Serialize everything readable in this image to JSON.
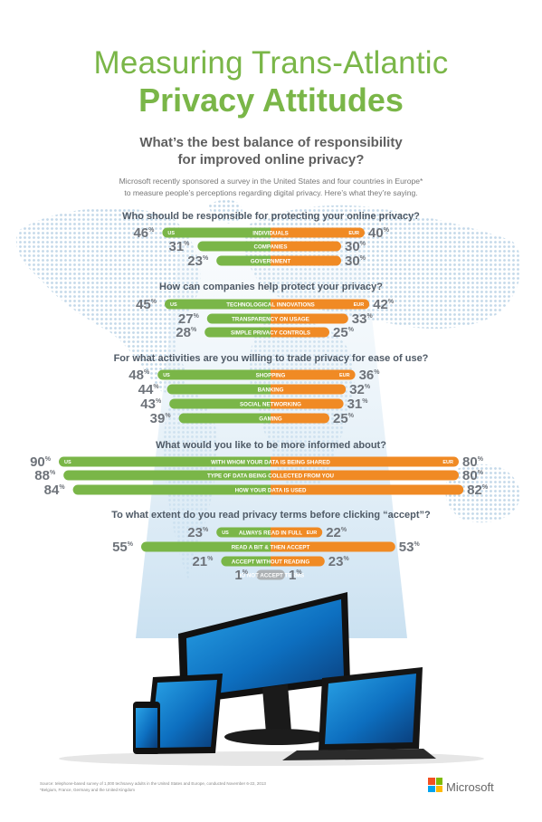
{
  "title_line1": "Measuring Trans-Atlantic",
  "title_line2": "Privacy Attitudes",
  "subtitle_line1": "What’s the best balance of responsibility",
  "subtitle_line2": "for improved online privacy?",
  "intro_line1": "Microsoft recently sponsored a survey in the United States and four countries in Europe*",
  "intro_line2": "to measure people’s perceptions regarding digital privacy. Here’s what they’re saying.",
  "footnote_line1": "Source: telephone-based survey of 1,000 techsavvy adults in the United States and Europe, conducted November 6-22, 2013",
  "footnote_line2": "*Belgium, France, Germany and the United Kingdom",
  "brand": "Microsoft",
  "colors": {
    "us": "#7ab648",
    "eur": "#f08a24",
    "accent": "#7ab648",
    "gray": "#adb1b4"
  },
  "chart_data": [
    {
      "type": "bar",
      "title": "Who should be responsible for protecting your online privacy?",
      "series_labels": {
        "us": "US",
        "eur": "EUR"
      },
      "categories": [
        "INDIVIDUALS",
        "COMPANIES",
        "GOVERNMENT"
      ],
      "series": [
        {
          "name": "US",
          "values": [
            46,
            31,
            23
          ]
        },
        {
          "name": "EUR",
          "values": [
            40,
            30,
            30
          ]
        }
      ]
    },
    {
      "type": "bar",
      "title": "How can companies help protect your privacy?",
      "series_labels": {
        "us": "US",
        "eur": "EUR"
      },
      "categories": [
        "TECHNOLOGICAL INNOVATIONS",
        "TRANSPARENCY ON USAGE",
        "SIMPLE PRIVACY CONTROLS"
      ],
      "series": [
        {
          "name": "US",
          "values": [
            45,
            27,
            28
          ]
        },
        {
          "name": "EUR",
          "values": [
            42,
            33,
            25
          ]
        }
      ]
    },
    {
      "type": "bar",
      "title": "For what activities are you willing to trade privacy for ease of use?",
      "series_labels": {
        "us": "US",
        "eur": "EUR"
      },
      "categories": [
        "SHOPPING",
        "BANKING",
        "SOCIAL NETWORKING",
        "GAMING"
      ],
      "series": [
        {
          "name": "US",
          "values": [
            48,
            44,
            43,
            39
          ]
        },
        {
          "name": "EUR",
          "values": [
            36,
            32,
            31,
            25
          ]
        }
      ]
    },
    {
      "type": "bar",
      "title": "What would you like to be more informed about?",
      "series_labels": {
        "us": "US",
        "eur": "EUR"
      },
      "categories": [
        "WITH WHOM YOUR DATA IS BEING SHARED",
        "TYPE OF DATA BEING COLLECTED FROM YOU",
        "HOW YOUR DATA IS USED"
      ],
      "series": [
        {
          "name": "US",
          "values": [
            90,
            88,
            84
          ]
        },
        {
          "name": "EUR",
          "values": [
            80,
            80,
            82
          ]
        }
      ]
    },
    {
      "type": "bar",
      "title": "To what extent do you read privacy terms before clicking “accept”?",
      "series_labels": {
        "us": "US",
        "eur": "EUR"
      },
      "categories": [
        "ALWAYS READ IN FULL",
        "READ A BIT & THEN ACCEPT",
        "ACCEPT WITHOUT READING",
        "DO NOT ACCEPT TERMS"
      ],
      "series": [
        {
          "name": "US",
          "values": [
            23,
            55,
            21,
            1
          ]
        },
        {
          "name": "EUR",
          "values": [
            22,
            53,
            23,
            1
          ]
        }
      ]
    }
  ]
}
